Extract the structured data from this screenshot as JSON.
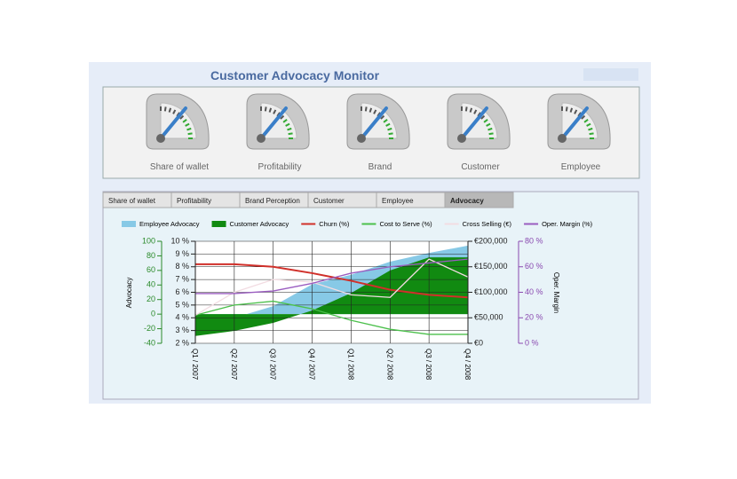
{
  "title": "Customer Advocacy Monitor",
  "gauges": [
    "Share of wallet",
    "Profitability",
    "Brand",
    "Customer",
    "Employee"
  ],
  "tabs": [
    "Share of wallet",
    "Profitability",
    "Brand Perception",
    "Customer",
    "Employee",
    "Advocacy"
  ],
  "active_tab": 5,
  "chart_data": {
    "type": "line",
    "categories": [
      "Q1 / 2007",
      "Q2 / 2007",
      "Q3 / 2007",
      "Q4 / 2007",
      "Q1 / 2008",
      "Q2 / 2008",
      "Q3 / 2008",
      "Q4 / 2008"
    ],
    "ylabel": "Advocacy",
    "y4label": "Oper. Margin",
    "ylim": [
      -40,
      100
    ],
    "yticks": [
      -40,
      -20,
      0,
      20,
      40,
      60,
      80,
      100
    ],
    "y2lim": [
      2,
      10
    ],
    "y2ticks": [
      {
        "value": 2,
        "label": "2 %"
      },
      {
        "value": 3,
        "label": "3 %"
      },
      {
        "value": 4,
        "label": "4 %"
      },
      {
        "value": 5,
        "label": "5 %"
      },
      {
        "value": 6,
        "label": "6 %"
      },
      {
        "value": 7,
        "label": "7 %"
      },
      {
        "value": 8,
        "label": "8 %"
      },
      {
        "value": 9,
        "label": "9 %"
      },
      {
        "value": 10,
        "label": "10 %"
      }
    ],
    "y3lim": [
      0,
      200000
    ],
    "y3ticks": [
      {
        "value": 0,
        "label": "€0"
      },
      {
        "value": 50000,
        "label": "€50,000"
      },
      {
        "value": 100000,
        "label": "€100,000"
      },
      {
        "value": 150000,
        "label": "€150,000"
      },
      {
        "value": 200000,
        "label": "€200,000"
      }
    ],
    "y4lim": [
      0,
      80
    ],
    "y4ticks": [
      {
        "value": 0,
        "label": "0 %"
      },
      {
        "value": 20,
        "label": "20 %"
      },
      {
        "value": 40,
        "label": "40 %"
      },
      {
        "value": 60,
        "label": "60 %"
      },
      {
        "value": 80,
        "label": "80 %"
      }
    ],
    "grid": true,
    "series": [
      {
        "name": "Employee Advocacy",
        "kind": "area",
        "axis": "y",
        "color": "#87c9e6",
        "values": [
          -20,
          -5,
          11,
          41,
          54,
          72,
          84,
          94
        ]
      },
      {
        "name": "Customer Advocacy",
        "kind": "area",
        "axis": "y",
        "color": "#118a11",
        "values": [
          -30,
          -23,
          -12,
          5,
          29,
          60,
          78,
          78
        ]
      },
      {
        "name": "Churn (%)",
        "kind": "line",
        "axis": "y2",
        "color": "#d0302a",
        "values": [
          8.2,
          8.2,
          8.0,
          7.5,
          6.9,
          6.2,
          5.8,
          5.6
        ]
      },
      {
        "name": "Cost to Serve (%)",
        "kind": "line",
        "axis": "y2",
        "color": "#4cc04c",
        "values": [
          4.2,
          5.0,
          5.3,
          4.7,
          3.8,
          3.1,
          2.7,
          2.7
        ]
      },
      {
        "name": "Cross Selling (€)",
        "kind": "line",
        "axis": "y3",
        "color": "#f2dce2",
        "values": [
          55000,
          100000,
          125000,
          120000,
          95000,
          90000,
          165000,
          130000
        ]
      },
      {
        "name": "Oper. Margin (%)",
        "kind": "line",
        "axis": "y4",
        "color": "#9a5cc0",
        "values": [
          39,
          39,
          41,
          47,
          55,
          60,
          63,
          66
        ]
      }
    ]
  }
}
